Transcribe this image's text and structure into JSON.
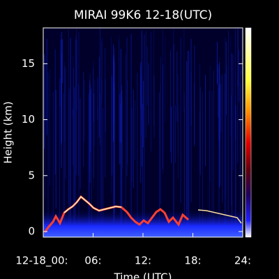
{
  "chart_data": {
    "type": "heatmap",
    "title": "MIRAI 99K6 12-18(UTC)",
    "x_label": "Time (UTC)",
    "y_label": "Height (km)",
    "xlim": [
      0,
      24
    ],
    "xticks": [
      {
        "value": 0,
        "label": "12-18_00:"
      },
      {
        "value": 6,
        "label": "06:"
      },
      {
        "value": 12,
        "label": "12:"
      },
      {
        "value": 18,
        "label": "18:"
      },
      {
        "value": 24,
        "label": "24:"
      }
    ],
    "ylim": [
      -0.5,
      18.2
    ],
    "yticks": [
      0,
      5,
      10,
      15
    ]
  }
}
